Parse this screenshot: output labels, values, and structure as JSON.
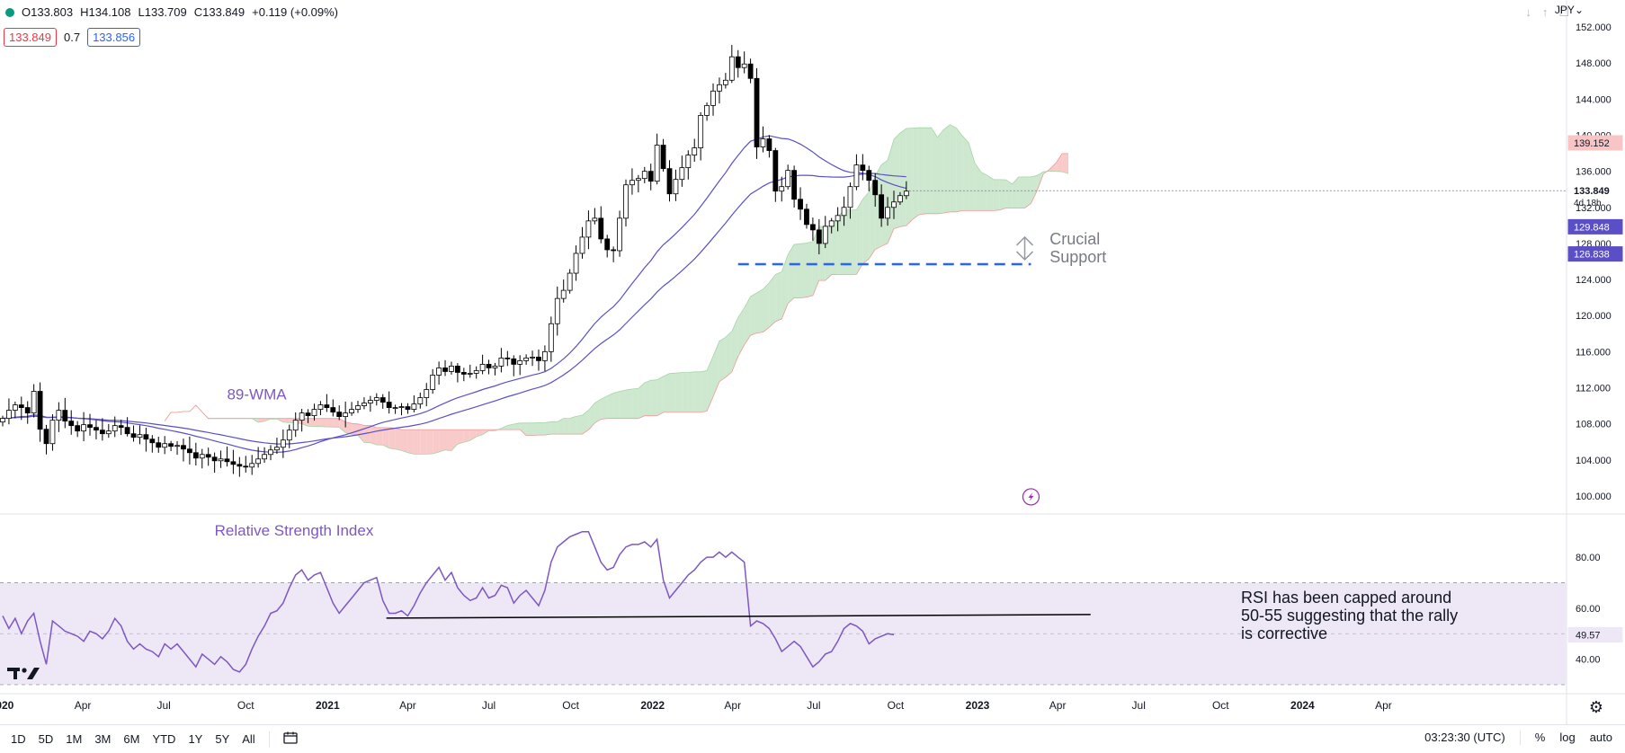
{
  "header": {
    "open": "O133.803",
    "high": "H134.108",
    "low": "L133.709",
    "close": "C133.849",
    "change": "+0.119 (+0.09%)",
    "sell_price": "133.849",
    "spread": "0.7",
    "buy_price": "133.856",
    "currency": "JPY"
  },
  "toolbar": {
    "ranges": [
      "1D",
      "5D",
      "1M",
      "3M",
      "6M",
      "YTD",
      "1Y",
      "5Y",
      "All"
    ],
    "time": "03:23:30 (UTC)",
    "percent": "%",
    "log": "log",
    "auto": "auto"
  },
  "colors": {
    "up": "#ffffff",
    "down": "#000000",
    "wma": "#5b4fc7",
    "cloud_bull": "#c8e6c9",
    "cloud_bear": "#f8c4c4",
    "support": "#2962ff",
    "rsi": "#7e57c2",
    "rsi_band": "#ede7f6",
    "annotation": "#7e57c2"
  },
  "chart_data": [
    {
      "type": "candlestick",
      "title": "",
      "interval": "weekly",
      "ylim": [
        98,
        154
      ],
      "y_ticks": [
        "100.000",
        "104.000",
        "108.000",
        "112.000",
        "116.000",
        "120.000",
        "124.000",
        "128.000",
        "132.000",
        "136.000",
        "140.000",
        "144.000",
        "148.000",
        "152.000"
      ],
      "x_ticks": [
        "2020",
        "Apr",
        "Jul",
        "Oct",
        "2021",
        "Apr",
        "Jul",
        "Oct",
        "2022",
        "Apr",
        "Jul",
        "Oct",
        "2023",
        "Apr",
        "Jul",
        "Oct",
        "2024",
        "Apr"
      ],
      "x_tick_dates": [
        "2020-01",
        "2020-04",
        "2020-07",
        "2020-10",
        "2021-01",
        "2021-04",
        "2021-07",
        "2021-10",
        "2022-01",
        "2022-04",
        "2022-07",
        "2022-10",
        "2023-01",
        "2023-04",
        "2023-07",
        "2023-10",
        "2024-01",
        "2024-04"
      ],
      "price_close_path": [
        108.6,
        109.5,
        110.1,
        109.8,
        109.2,
        111.6,
        107.4,
        105.8,
        108.4,
        109.5,
        108.3,
        107.8,
        107.2,
        107.9,
        107.6,
        107.3,
        106.9,
        107.2,
        107.8,
        107.6,
        106.9,
        106.5,
        106.8,
        106.3,
        105.9,
        105.4,
        105.8,
        105.5,
        105.6,
        105.2,
        104.8,
        104.2,
        104.6,
        104.3,
        103.9,
        104.1,
        103.8,
        103.5,
        103.3,
        103.2,
        103.6,
        104.1,
        104.6,
        105.1,
        105.4,
        106.2,
        107.3,
        108.4,
        109.2,
        108.9,
        109.6,
        110.1,
        109.8,
        109.3,
        108.8,
        109.2,
        109.6,
        110.0,
        110.3,
        110.6,
        110.9,
        110.4,
        109.8,
        109.8,
        109.9,
        109.6,
        110.2,
        110.9,
        111.8,
        113.4,
        114.2,
        113.8,
        114.4,
        113.7,
        113.5,
        113.6,
        113.9,
        114.6,
        114.2,
        114.4,
        115.3,
        115.2,
        114.6,
        115.0,
        115.3,
        115.4,
        115.0,
        116.0,
        119.1,
        121.9,
        122.8,
        124.7,
        126.9,
        128.7,
        130.5,
        130.8,
        128.5,
        127.3,
        127.2,
        130.8,
        134.5,
        135.0,
        135.2,
        136.0,
        134.9,
        138.9,
        136.3,
        133.5,
        135.1,
        136.4,
        137.8,
        138.6,
        142.2,
        143.3,
        144.9,
        145.6,
        146.1,
        148.7,
        147.5,
        147.9,
        146.3,
        138.7,
        139.6,
        138.3,
        133.8,
        134.3,
        136.1,
        132.9,
        131.8,
        130.1,
        129.5,
        128.0,
        129.9,
        130.5,
        131.1,
        132.0,
        134.3,
        136.7,
        136.1,
        135.0,
        133.4,
        130.8,
        132.0,
        132.6,
        133.3,
        133.8
      ],
      "last_close": 133.849,
      "candle_remaining": "4d 18h",
      "price_labels": [
        {
          "label": "139.152",
          "value": 139.152,
          "kind": "cloud-span"
        },
        {
          "label": "133.849",
          "value": 133.849,
          "kind": "last"
        },
        {
          "label": "129.848",
          "value": 129.848,
          "kind": "wma-fast"
        },
        {
          "label": "126.838",
          "value": 126.838,
          "kind": "wma-slow"
        }
      ],
      "support_level": 125.7,
      "annotations": [
        "89-WMA",
        "Crucial",
        "Support"
      ]
    },
    {
      "type": "line",
      "title": "Relative Strength Index",
      "ylim": [
        30,
        92
      ],
      "y_ticks": [
        "40.00",
        "60.00",
        "80.00"
      ],
      "band": [
        30,
        70
      ],
      "midline": 50,
      "last_value": "49.57",
      "trendline": [
        {
          "date": "2021-03-08",
          "value": 56.1
        },
        {
          "date": "2023-05-08",
          "value": 57.5
        }
      ],
      "values": [
        57,
        52,
        56,
        50,
        55,
        58,
        47,
        38,
        55,
        53,
        51,
        50,
        49,
        47,
        51,
        50,
        48,
        51,
        56,
        53,
        47,
        44,
        46,
        44,
        43,
        41,
        46,
        44,
        46,
        43,
        40,
        37,
        42,
        40,
        38,
        41,
        39,
        36,
        35,
        38,
        44,
        49,
        53,
        58,
        59,
        62,
        68,
        73,
        75,
        71,
        73,
        74,
        68,
        62,
        58,
        61,
        64,
        67,
        70,
        71,
        72,
        63,
        58,
        58,
        59,
        57,
        61,
        66,
        70,
        73,
        76,
        71,
        74,
        68,
        65,
        63,
        64,
        68,
        64,
        65,
        69,
        68,
        62,
        65,
        67,
        64,
        61,
        67,
        78,
        84,
        86,
        88,
        89,
        90,
        90,
        84,
        78,
        75,
        76,
        81,
        84,
        85,
        85,
        86,
        84,
        87,
        71,
        64,
        67,
        70,
        73,
        75,
        78,
        80,
        80,
        82,
        80,
        82,
        80,
        78,
        53,
        55,
        54,
        52,
        48,
        43,
        45,
        47,
        45,
        41,
        37,
        39,
        42,
        43,
        47,
        52,
        54,
        53,
        51,
        46,
        48,
        49,
        50,
        49.57
      ],
      "annotation": [
        "RSI has been capped around",
        "50-55 suggesting that the rally",
        "is corrective"
      ]
    }
  ]
}
